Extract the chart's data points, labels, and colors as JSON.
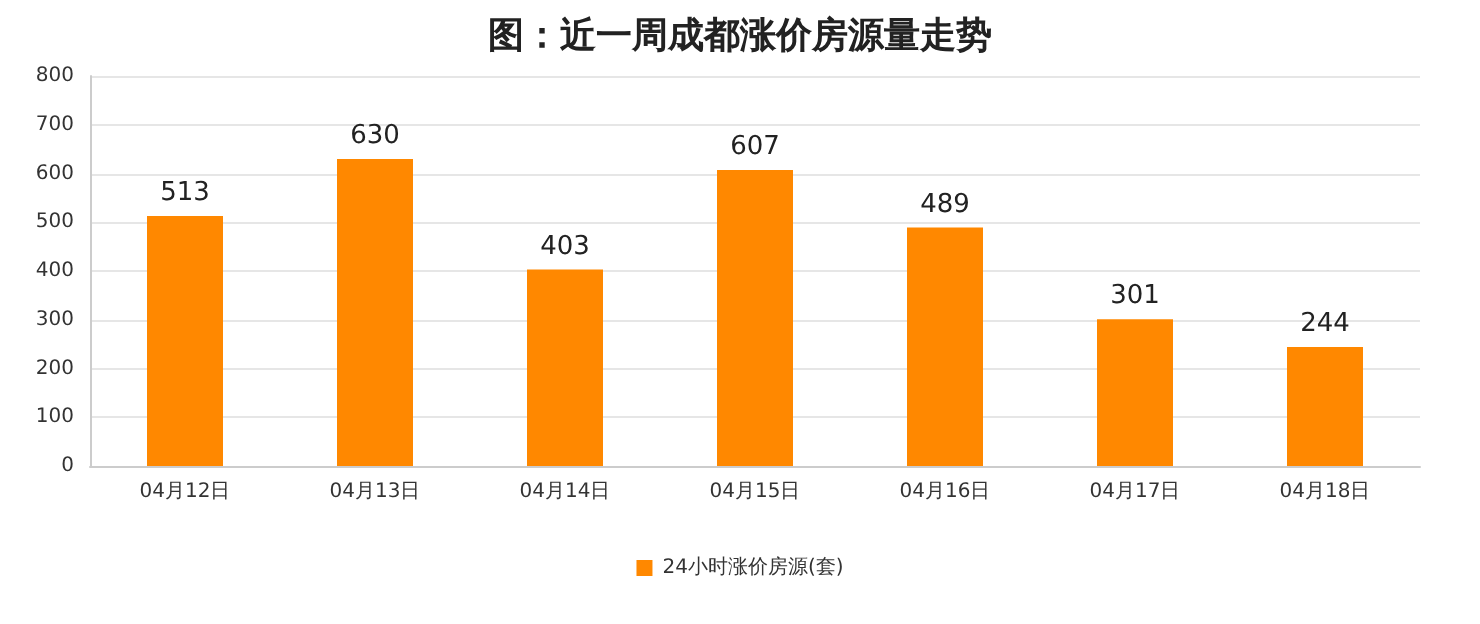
{
  "chart_data": {
    "type": "bar",
    "title": "图：近一周成都涨价房源量走势",
    "categories": [
      "04月12日",
      "04月13日",
      "04月14日",
      "04月15日",
      "04月16日",
      "04月17日",
      "04月18日"
    ],
    "series": [
      {
        "name": "24小时涨价房源(套)",
        "color": "#ff8800",
        "values": [
          513,
          630,
          403,
          607,
          489,
          301,
          244
        ]
      }
    ],
    "ylim": [
      0,
      800
    ],
    "yticks": [
      0,
      100,
      200,
      300,
      400,
      500,
      600,
      700,
      800
    ],
    "grid": "y",
    "legend": "bottom",
    "data_labels": true
  }
}
